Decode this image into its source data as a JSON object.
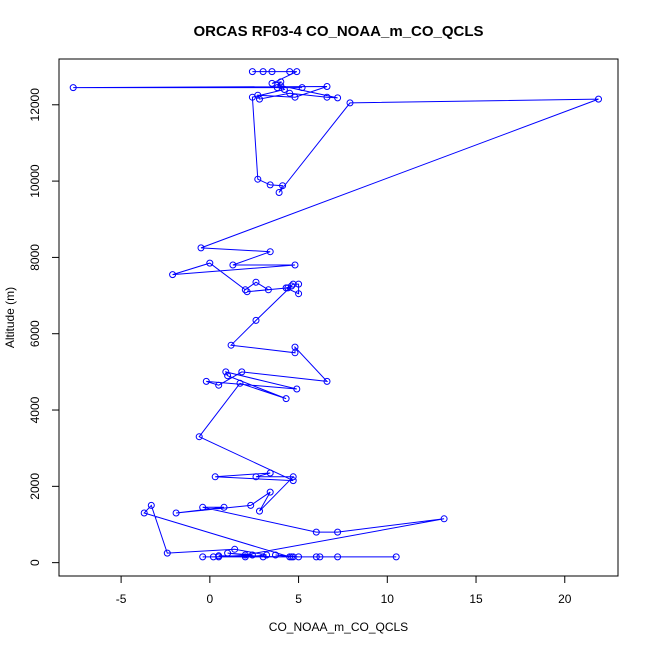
{
  "chart_data": {
    "type": "line",
    "title": "ORCAS RF03-4 CO_NOAA_m_CO_QCLS",
    "xlabel": "CO_NOAA_m_CO_QCLS",
    "ylabel": "Altitude (m)",
    "xlim": [
      -8.5,
      23
    ],
    "ylim": [
      -350,
      13200
    ],
    "xticks": [
      -5,
      0,
      5,
      10,
      15,
      20
    ],
    "yticks": [
      0,
      2000,
      4000,
      6000,
      8000,
      10000,
      12000
    ],
    "grid": false,
    "legend": "none",
    "markers": "open-circle",
    "color": "#0000ff",
    "series": [
      {
        "x": [
          2.4,
          3.0,
          3.5,
          4.5,
          4.9,
          3.5,
          4.0,
          3.8,
          5.2,
          -7.7,
          6.6,
          4.8,
          2.7,
          2.8,
          4.5,
          6.6,
          7.2,
          4.0,
          4.2,
          2.4,
          2.7,
          3.4,
          4.1,
          3.9,
          7.9,
          21.9,
          -0.5,
          3.4,
          1.3,
          4.8,
          -2.1,
          0.0,
          2.0,
          2.6,
          3.3,
          2.1,
          4.4,
          4.7,
          5.0,
          5.0,
          4.3,
          4.6,
          2.6,
          1.2,
          4.8,
          4.8,
          6.6,
          1.8,
          0.5,
          -0.2,
          4.9,
          0.9,
          1.0,
          4.3,
          1.7,
          -0.6,
          4.7,
          0.3,
          3.4,
          2.6,
          4.7,
          2.8,
          3.4,
          2.3,
          -1.9,
          0.8,
          -0.4,
          6.0,
          7.2,
          13.2,
          2.0,
          3.0,
          1.0,
          2.4,
          0.2,
          6.2,
          10.5,
          7.2,
          4.5,
          -3.7,
          -3.3,
          -2.4,
          1.4,
          3.2,
          2.0,
          0.5,
          4.6,
          5.0,
          3.7,
          4.7,
          6.0,
          0.5,
          -0.4
        ]
      }
    ],
    "y": [
      12870,
      12870,
      12870,
      12870,
      12870,
      12560,
      12600,
      12450,
      12450,
      12450,
      12480,
      12200,
      12250,
      12150,
      12300,
      12200,
      12180,
      12500,
      12400,
      12200,
      10050,
      9900,
      9880,
      9700,
      12050,
      12150,
      8250,
      8150,
      7800,
      7800,
      7550,
      7850,
      7150,
      7350,
      7150,
      7100,
      7200,
      7300,
      7300,
      7050,
      7200,
      7250,
      6350,
      5700,
      5500,
      5650,
      4750,
      5000,
      4650,
      4750,
      4550,
      5000,
      4900,
      4300,
      4700,
      3300,
      2150,
      2250,
      2350,
      2250,
      2250,
      1350,
      1850,
      1500,
      1300,
      1450,
      1450,
      800,
      800,
      1150,
      200,
      150,
      250,
      200,
      150,
      150,
      150,
      150,
      150,
      1300,
      1500,
      250,
      350,
      200,
      150,
      180,
      150,
      150,
      200,
      150,
      150,
      150,
      150
    ]
  }
}
